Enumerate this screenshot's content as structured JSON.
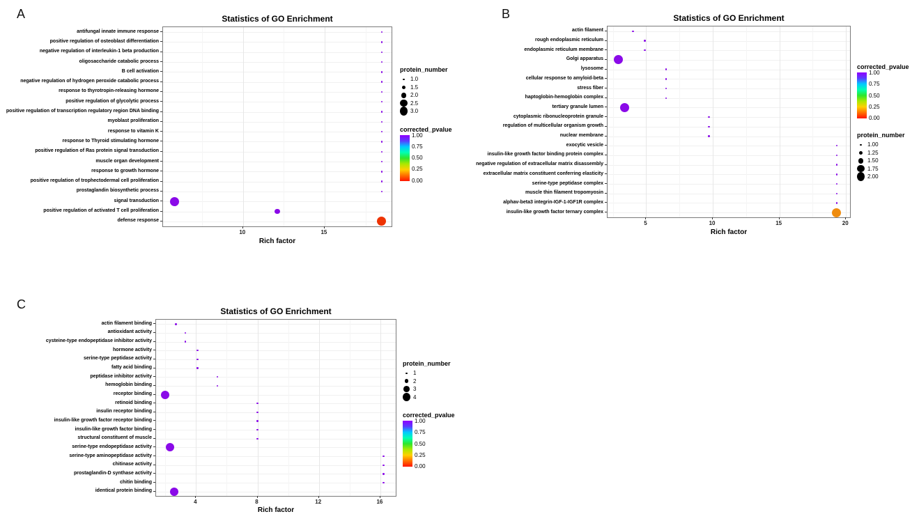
{
  "shared": {
    "size_legend_title": "protein_number",
    "color_legend_title": "corrected_pvalue",
    "color_legend_labels": [
      "1.00",
      "0.75",
      "0.50",
      "0.25",
      "0.00"
    ],
    "color_scale_stops": [
      "#9000ff",
      "#5a3cff",
      "#00c8ff",
      "#00ffb4",
      "#2ee62e",
      "#aae800",
      "#ffd000",
      "#ff7000",
      "#ff1400"
    ],
    "default_dot_color": "#8a0ae8",
    "legend_dot_color": "#000000"
  },
  "chart_data": [
    {
      "panel": "A",
      "type": "scatter",
      "title": "Statistics of GO Enrichment",
      "xlabel": "Rich factor",
      "x_range": [
        5.1,
        19.1
      ],
      "x_ticks": [
        10,
        15
      ],
      "legend_order": [
        "size",
        "color"
      ],
      "size_legend": {
        "values": [
          1.0,
          1.5,
          2.0,
          2.5,
          3.0
        ],
        "labels": [
          "1.0",
          "1.5",
          "2.0",
          "2.5",
          "3.0"
        ]
      },
      "size_scale": {
        "min_n": 1,
        "max_n": 3,
        "min_r": 1.2,
        "max_r": 6.5
      },
      "points": [
        {
          "label": "antifungal innate immune response",
          "x": 18.5,
          "protein_number": 1,
          "corrected_pvalue": 1.0
        },
        {
          "label": "positive regulation of osteoblast differentiation",
          "x": 18.5,
          "protein_number": 1,
          "corrected_pvalue": 1.0
        },
        {
          "label": "negative regulation of interleukin-1 beta production",
          "x": 18.5,
          "protein_number": 1,
          "corrected_pvalue": 1.0
        },
        {
          "label": "oligosaccharide catabolic process",
          "x": 18.5,
          "protein_number": 1,
          "corrected_pvalue": 1.0
        },
        {
          "label": "B cell activation",
          "x": 18.5,
          "protein_number": 1,
          "corrected_pvalue": 1.0
        },
        {
          "label": "negative regulation of hydrogen peroxide catabolic process",
          "x": 18.5,
          "protein_number": 1,
          "corrected_pvalue": 1.0
        },
        {
          "label": "response to thyrotropin-releasing hormone",
          "x": 18.5,
          "protein_number": 1,
          "corrected_pvalue": 1.0
        },
        {
          "label": "positive regulation of glycolytic process",
          "x": 18.5,
          "protein_number": 1,
          "corrected_pvalue": 1.0
        },
        {
          "label": "positive regulation of transcription regulatory region DNA binding",
          "x": 18.5,
          "protein_number": 1,
          "corrected_pvalue": 1.0
        },
        {
          "label": "myoblast proliferation",
          "x": 18.5,
          "protein_number": 1,
          "corrected_pvalue": 1.0
        },
        {
          "label": "response to vitamin K",
          "x": 18.5,
          "protein_number": 1,
          "corrected_pvalue": 1.0
        },
        {
          "label": "response to Thyroid stimulating hormone",
          "x": 18.5,
          "protein_number": 1,
          "corrected_pvalue": 1.0
        },
        {
          "label": "positive regulation of Ras protein signal transduction",
          "x": 18.5,
          "protein_number": 1,
          "corrected_pvalue": 1.0
        },
        {
          "label": "muscle organ development",
          "x": 18.5,
          "protein_number": 1,
          "corrected_pvalue": 1.0
        },
        {
          "label": "response to growth hormone",
          "x": 18.5,
          "protein_number": 1,
          "corrected_pvalue": 1.0
        },
        {
          "label": "positive regulation of trophectodermal cell proliferation",
          "x": 18.5,
          "protein_number": 1,
          "corrected_pvalue": 1.0
        },
        {
          "label": "prostaglandin biosynthetic process",
          "x": 18.5,
          "protein_number": 1,
          "corrected_pvalue": 1.0
        },
        {
          "label": "signal transduction",
          "x": 5.8,
          "protein_number": 3,
          "corrected_pvalue": 1.0
        },
        {
          "label": "positive regulation of activated T cell proliferation",
          "x": 12.1,
          "protein_number": 2,
          "corrected_pvalue": 1.0
        },
        {
          "label": "defense response",
          "x": 18.5,
          "protein_number": 3,
          "corrected_pvalue": 0.02,
          "color": "#ee3302"
        }
      ]
    },
    {
      "panel": "B",
      "type": "scatter",
      "title": "Statistics of GO Enrichment",
      "xlabel": "Rich factor",
      "x_range": [
        2.1,
        20.3
      ],
      "x_ticks": [
        5,
        10,
        15,
        20
      ],
      "legend_order": [
        "color",
        "size"
      ],
      "size_legend": {
        "values": [
          1.0,
          1.25,
          1.5,
          1.75,
          2.0
        ],
        "labels": [
          "1.00",
          "1.25",
          "1.50",
          "1.75",
          "2.00"
        ]
      },
      "size_scale": {
        "min_n": 1,
        "max_n": 2,
        "min_r": 1.2,
        "max_r": 6.5
      },
      "points": [
        {
          "label": "actin filament",
          "x": 4.0,
          "protein_number": 1,
          "corrected_pvalue": 1.0
        },
        {
          "label": "rough endoplasmic reticulum",
          "x": 4.9,
          "protein_number": 1,
          "corrected_pvalue": 1.0
        },
        {
          "label": "endoplasmic reticulum membrane",
          "x": 4.9,
          "protein_number": 1,
          "corrected_pvalue": 1.0
        },
        {
          "label": "Golgi apparatus",
          "x": 2.9,
          "protein_number": 2,
          "corrected_pvalue": 1.0
        },
        {
          "label": "lysosome",
          "x": 6.5,
          "protein_number": 1,
          "corrected_pvalue": 1.0
        },
        {
          "label": "cellular response to amyloid-beta",
          "x": 6.5,
          "protein_number": 1,
          "corrected_pvalue": 1.0
        },
        {
          "label": "stress fiber",
          "x": 6.5,
          "protein_number": 1,
          "corrected_pvalue": 1.0
        },
        {
          "label": "haptoglobin-hemoglobin complex",
          "x": 6.5,
          "protein_number": 1,
          "corrected_pvalue": 1.0
        },
        {
          "label": "tertiary granule lumen",
          "x": 3.4,
          "protein_number": 2,
          "corrected_pvalue": 1.0
        },
        {
          "label": "cytoplasmic ribonucleoprotein granule",
          "x": 9.7,
          "protein_number": 1,
          "corrected_pvalue": 1.0
        },
        {
          "label": "regulation of multicellular organism growth",
          "x": 9.7,
          "protein_number": 1,
          "corrected_pvalue": 1.0
        },
        {
          "label": "nuclear membrane",
          "x": 9.7,
          "protein_number": 1,
          "corrected_pvalue": 1.0
        },
        {
          "label": "exocytic vesicle",
          "x": 19.3,
          "protein_number": 1,
          "corrected_pvalue": 1.0
        },
        {
          "label": "insulin-like growth factor binding protein complex",
          "x": 19.3,
          "protein_number": 1,
          "corrected_pvalue": 1.0
        },
        {
          "label": "negative regulation of extracellular matrix disassembly",
          "x": 19.3,
          "protein_number": 1,
          "corrected_pvalue": 1.0
        },
        {
          "label": "extracellular matrix constituent conferring elasticity",
          "x": 19.3,
          "protein_number": 1,
          "corrected_pvalue": 1.0
        },
        {
          "label": "serine-type peptidase complex",
          "x": 19.3,
          "protein_number": 1,
          "corrected_pvalue": 1.0
        },
        {
          "label": "muscle thin filament tropomyosin",
          "x": 19.3,
          "protein_number": 1,
          "corrected_pvalue": 1.0
        },
        {
          "label": "alphav-beta3 integrin-IGF-1-IGF1R complex",
          "x": 19.3,
          "protein_number": 1,
          "corrected_pvalue": 1.0
        },
        {
          "label": "insulin-like growth factor ternary complex",
          "x": 19.3,
          "protein_number": 2,
          "corrected_pvalue": 0.1,
          "color": "#ef8c0e"
        }
      ]
    },
    {
      "panel": "C",
      "type": "scatter",
      "title": "Statistics of GO Enrichment",
      "xlabel": "Rich factor",
      "x_range": [
        1.4,
        17.0
      ],
      "x_ticks": [
        4,
        8,
        12,
        16
      ],
      "legend_order": [
        "size",
        "color"
      ],
      "size_legend": {
        "values": [
          1,
          2,
          3,
          4
        ],
        "labels": [
          "1",
          "2",
          "3",
          "4"
        ]
      },
      "size_scale": {
        "min_n": 1,
        "max_n": 4,
        "min_r": 1.2,
        "max_r": 6.0
      },
      "points": [
        {
          "label": "actin filament binding",
          "x": 2.7,
          "protein_number": 1,
          "corrected_pvalue": 1.0
        },
        {
          "label": "antioxidant activity",
          "x": 3.3,
          "protein_number": 1,
          "corrected_pvalue": 1.0
        },
        {
          "label": "cysteine-type endopeptidase inhibitor activity",
          "x": 3.3,
          "protein_number": 1,
          "corrected_pvalue": 1.0
        },
        {
          "label": "hormone activity",
          "x": 4.1,
          "protein_number": 1,
          "corrected_pvalue": 1.0
        },
        {
          "label": "serine-type peptidase activity",
          "x": 4.1,
          "protein_number": 1,
          "corrected_pvalue": 1.0
        },
        {
          "label": "fatty acid binding",
          "x": 4.1,
          "protein_number": 1,
          "corrected_pvalue": 1.0
        },
        {
          "label": "peptidase inhibitor activity",
          "x": 5.4,
          "protein_number": 1,
          "corrected_pvalue": 1.0
        },
        {
          "label": "hemoglobin binding",
          "x": 5.4,
          "protein_number": 1,
          "corrected_pvalue": 1.0
        },
        {
          "label": "receptor binding",
          "x": 2.0,
          "protein_number": 4,
          "corrected_pvalue": 1.0
        },
        {
          "label": "retinoid binding",
          "x": 8.0,
          "protein_number": 1,
          "corrected_pvalue": 1.0
        },
        {
          "label": "insulin receptor binding",
          "x": 8.0,
          "protein_number": 1,
          "corrected_pvalue": 1.0
        },
        {
          "label": "insulin-like growth factor receptor binding",
          "x": 8.0,
          "protein_number": 1,
          "corrected_pvalue": 1.0
        },
        {
          "label": "insulin-like growth factor binding",
          "x": 8.0,
          "protein_number": 1,
          "corrected_pvalue": 1.0
        },
        {
          "label": "structural constituent of muscle",
          "x": 8.0,
          "protein_number": 1,
          "corrected_pvalue": 1.0
        },
        {
          "label": "serine-type endopeptidase activity",
          "x": 2.3,
          "protein_number": 4,
          "corrected_pvalue": 1.0
        },
        {
          "label": "serine-type aminopeptidase activity",
          "x": 16.2,
          "protein_number": 1,
          "corrected_pvalue": 1.0
        },
        {
          "label": "chitinase activity",
          "x": 16.2,
          "protein_number": 1,
          "corrected_pvalue": 1.0
        },
        {
          "label": "prostaglandin-D synthase activity",
          "x": 16.2,
          "protein_number": 1,
          "corrected_pvalue": 1.0
        },
        {
          "label": "chitin binding",
          "x": 16.2,
          "protein_number": 1,
          "corrected_pvalue": 1.0
        },
        {
          "label": "identical protein binding",
          "x": 2.6,
          "protein_number": 4,
          "corrected_pvalue": 1.0
        }
      ]
    }
  ]
}
